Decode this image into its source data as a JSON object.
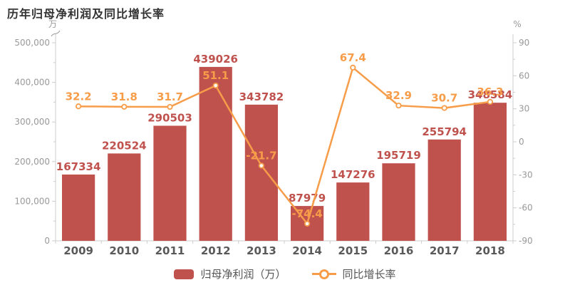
{
  "title": "历年归母净利润及同比增长率",
  "colors": {
    "bar": "#c0524e",
    "bar_label": "#c0524e",
    "line": "#f79d4a",
    "line_label": "#f79d4a",
    "marker_fill": "#ffffff",
    "axis": "#cccccc",
    "tick_text": "#999999",
    "year_text": "#595959",
    "title_text": "#333333",
    "background": "#ffffff"
  },
  "chart_data": {
    "type": "bar",
    "subtype": "bar+line dual axis",
    "title": "历年归母净利润及同比增长率",
    "categories": [
      "2009",
      "2010",
      "2011",
      "2012",
      "2013",
      "2014",
      "2015",
      "2016",
      "2017",
      "2018"
    ],
    "series": [
      {
        "name": "归母净利润（万）",
        "type": "bar",
        "axis": "left",
        "color": "#c0524e",
        "values": [
          167334,
          220524,
          290503,
          439026,
          343782,
          87979,
          147276,
          195719,
          255794,
          348584
        ]
      },
      {
        "name": "同比增长率",
        "type": "line",
        "axis": "right",
        "color": "#f79d4a",
        "values": [
          32.2,
          31.8,
          31.7,
          51.1,
          -21.7,
          -74.4,
          67.4,
          32.9,
          30.7,
          36.3
        ]
      }
    ],
    "left_axis": {
      "unit": "万",
      "min": 0,
      "max": 500000,
      "step": 100000,
      "tick_labels": [
        "0",
        "100,000",
        "200,000",
        "300,000",
        "400,000",
        "500,000"
      ]
    },
    "right_axis": {
      "unit": "%",
      "min": -90,
      "max": 90,
      "step": 30,
      "tick_labels": [
        "-90",
        "-60",
        "-30",
        "0",
        "30",
        "60",
        "90"
      ]
    },
    "xlabel": "",
    "ylabel_left": "万",
    "ylabel_right": "%",
    "grid": false,
    "legend_position": "bottom",
    "legend": [
      "归母净利润（万）",
      "同比增长率"
    ]
  }
}
